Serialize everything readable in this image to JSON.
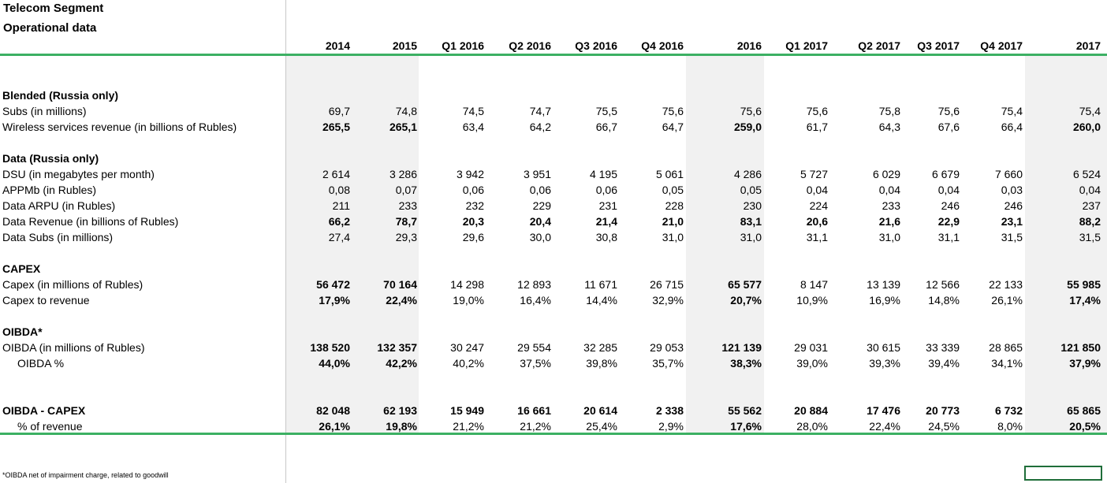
{
  "title": {
    "line1": "Telecom Segment",
    "line2": "Operational data"
  },
  "columns": [
    "2014",
    "2015",
    "Q1 2016",
    "Q2 2016",
    "Q3 2016",
    "Q4 2016",
    "2016",
    "Q1 2017",
    "Q2 2017",
    "Q3 2017",
    "Q4 2017",
    "2017"
  ],
  "rows": [
    {
      "type": "section",
      "label": "Blended (Russia only)"
    },
    {
      "type": "data",
      "label": "Subs (in millions)",
      "values": [
        "69,7",
        "74,8",
        "74,5",
        "74,7",
        "75,5",
        "75,6",
        "75,6",
        "75,6",
        "75,8",
        "75,6",
        "75,4",
        "75,4"
      ]
    },
    {
      "type": "data",
      "label": "Wireless services revenue (in billions of Rubles)",
      "bold": "annual",
      "values": [
        "265,5",
        "265,1",
        "63,4",
        "64,2",
        "66,7",
        "64,7",
        "259,0",
        "61,7",
        "64,3",
        "67,6",
        "66,4",
        "260,0"
      ]
    },
    {
      "type": "section",
      "label": "Data (Russia only)"
    },
    {
      "type": "data",
      "label": "DSU (in megabytes per month)",
      "values": [
        "2 614",
        "3 286",
        "3 942",
        "3 951",
        "4 195",
        "5 061",
        "4 286",
        "5 727",
        "6 029",
        "6 679",
        "7 660",
        "6 524"
      ]
    },
    {
      "type": "data",
      "label": "APPMb (in Rubles)",
      "values": [
        "0,08",
        "0,07",
        "0,06",
        "0,06",
        "0,06",
        "0,05",
        "0,05",
        "0,04",
        "0,04",
        "0,04",
        "0,03",
        "0,04"
      ]
    },
    {
      "type": "data",
      "label": "Data ARPU (in Rubles)",
      "values": [
        "211",
        "233",
        "232",
        "229",
        "231",
        "228",
        "230",
        "224",
        "233",
        "246",
        "246",
        "237"
      ]
    },
    {
      "type": "data",
      "label": "Data Revenue (in billions of Rubles)",
      "bold": "all",
      "values": [
        "66,2",
        "78,7",
        "20,3",
        "20,4",
        "21,4",
        "21,0",
        "83,1",
        "20,6",
        "21,6",
        "22,9",
        "23,1",
        "88,2"
      ]
    },
    {
      "type": "data",
      "label": "Data Subs (in millions)",
      "values": [
        "27,4",
        "29,3",
        "29,6",
        "30,0",
        "30,8",
        "31,0",
        "31,0",
        "31,1",
        "31,0",
        "31,1",
        "31,5",
        "31,5"
      ]
    },
    {
      "type": "section",
      "label": "CAPEX"
    },
    {
      "type": "data",
      "label": "Capex (in millions of Rubles)",
      "bold": "annual",
      "values": [
        "56 472",
        "70 164",
        "14 298",
        "12 893",
        "11 671",
        "26 715",
        "65 577",
        "8 147",
        "13 139",
        "12 566",
        "22 133",
        "55 985"
      ]
    },
    {
      "type": "data",
      "label": "Capex to revenue",
      "bold": "annual",
      "values": [
        "17,9%",
        "22,4%",
        "19,0%",
        "16,4%",
        "14,4%",
        "32,9%",
        "20,7%",
        "10,9%",
        "16,9%",
        "14,8%",
        "26,1%",
        "17,4%"
      ]
    },
    {
      "type": "section",
      "label": "OIBDA*"
    },
    {
      "type": "data",
      "label": "OIBDA (in millions of Rubles)",
      "bold": "annual",
      "values": [
        "138 520",
        "132 357",
        "30 247",
        "29 554",
        "32 285",
        "29 053",
        "121 139",
        "29 031",
        "30 615",
        "33 339",
        "28 865",
        "121 850"
      ]
    },
    {
      "type": "data",
      "label": "OIBDA %",
      "indent": true,
      "bold": "annual",
      "values": [
        "44,0%",
        "42,2%",
        "40,2%",
        "37,5%",
        "39,8%",
        "35,7%",
        "38,3%",
        "39,0%",
        "39,3%",
        "39,4%",
        "34,1%",
        "37,9%"
      ]
    },
    {
      "type": "section",
      "label": "OIBDA - CAPEX",
      "values": [
        "82 048",
        "62 193",
        "15 949",
        "16 661",
        "20 614",
        "2 338",
        "55 562",
        "20 884",
        "17 476",
        "20 773",
        "6 732",
        "65 865"
      ]
    },
    {
      "type": "data",
      "label": "% of revenue",
      "indent": true,
      "bold": "annual",
      "values": [
        "26,1%",
        "19,8%",
        "21,2%",
        "21,2%",
        "25,4%",
        "2,9%",
        "17,6%",
        "28,0%",
        "22,4%",
        "24,5%",
        "8,0%",
        "20,5%"
      ]
    }
  ],
  "footnote": "*OIBDA net of impairment charge, related to goodwill"
}
